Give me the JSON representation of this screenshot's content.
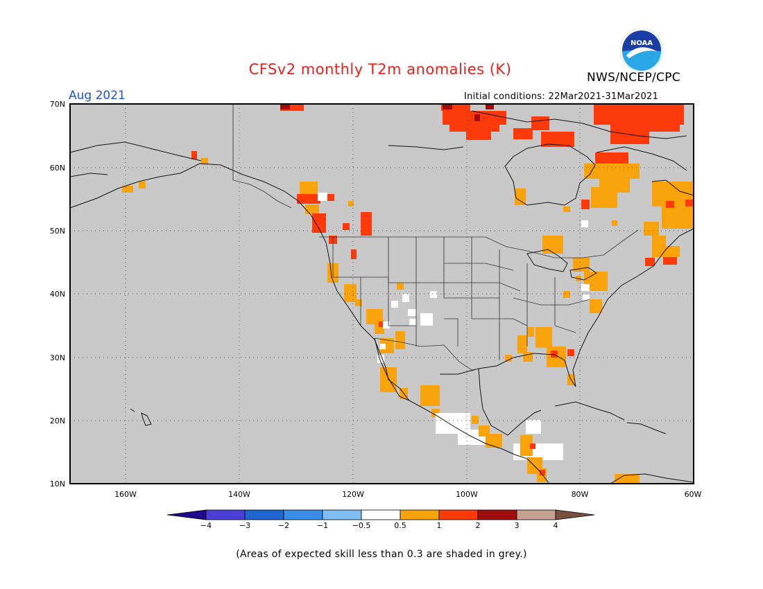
{
  "title": "CFSv2 monthly T2m anomalies (K)",
  "org_label": "NWS/NCEP/CPC",
  "logo": {
    "text": "NOAA",
    "colors": {
      "outer": "#1a3ea5",
      "inner": "#2aa7e6",
      "bird": "#ffffff"
    }
  },
  "month_label": "Aug 2021",
  "initial_conditions": "Initial conditions: 22Mar2021-31Mar2021",
  "footnote": "(Areas of expected skill less than 0.3 are shaded in grey.)",
  "map": {
    "background_color": "#c8c8c8",
    "lat_ticks": [
      "70N",
      "60N",
      "50N",
      "40N",
      "30N",
      "20N",
      "10N"
    ],
    "lon_ticks": [
      "160W",
      "140W",
      "120W",
      "100W",
      "80W",
      "60W"
    ],
    "grid": true
  },
  "colorbar": {
    "bins": [
      {
        "color": "#1f0b8c"
      },
      {
        "color": "#4a40d8"
      },
      {
        "color": "#1f66cf"
      },
      {
        "color": "#3a8de6"
      },
      {
        "color": "#7fbdf2"
      },
      {
        "color": "#ffffff"
      },
      {
        "color": "#f8a20c"
      },
      {
        "color": "#ff3a0a"
      },
      {
        "color": "#a00d0d"
      },
      {
        "color": "#c8a090"
      },
      {
        "color": "#7a5040"
      }
    ],
    "labels": [
      "−4",
      "−3",
      "−2",
      "−1",
      "−0.5",
      "0.5",
      "1",
      "2",
      "3",
      "4"
    ]
  },
  "anomaly_colors": {
    "near_zero": "#ffffff",
    "c05_1": "#f8a20c",
    "c1_2": "#ff3a0a",
    "c2_3": "#a00d0d"
  }
}
